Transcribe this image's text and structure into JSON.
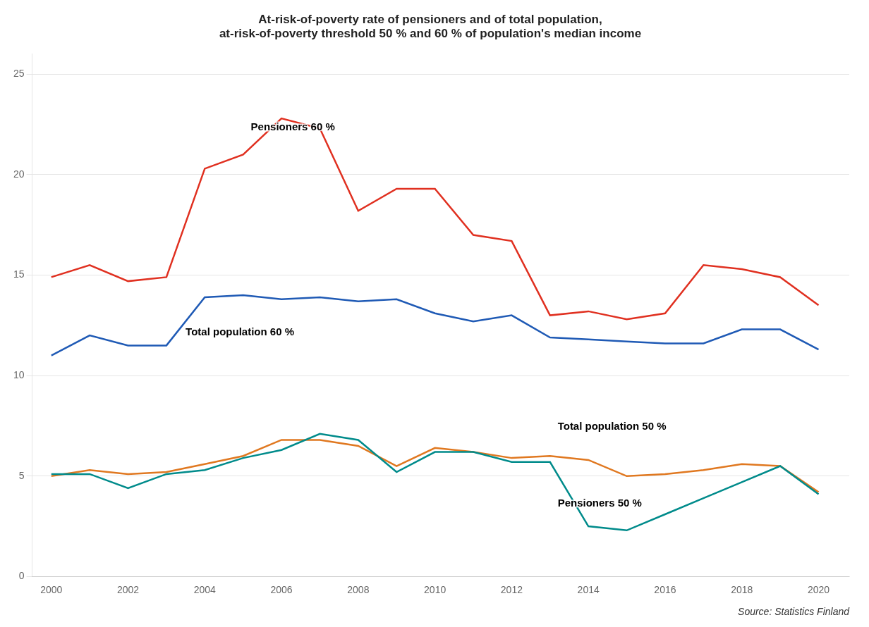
{
  "chart_data": {
    "type": "line",
    "title": "At-risk-of-poverty rate of pensioners and of total population,\nat-risk-of-poverty threshold 50 % and 60 % of population's median income",
    "source": "Source: Statistics Finland",
    "x": [
      2000,
      2001,
      2002,
      2003,
      2004,
      2005,
      2006,
      2007,
      2008,
      2009,
      2010,
      2011,
      2012,
      2013,
      2014,
      2015,
      2016,
      2017,
      2018,
      2019,
      2020
    ],
    "series": [
      {
        "name": "Pensioners 60 %",
        "color": "#e03020",
        "values": [
          14.9,
          15.5,
          14.7,
          14.9,
          20.3,
          21.0,
          22.8,
          22.3,
          18.2,
          19.3,
          19.3,
          17.0,
          16.7,
          13.0,
          13.2,
          12.8,
          13.1,
          15.5,
          15.3,
          14.9,
          13.5
        ]
      },
      {
        "name": "Total population 60 %",
        "color": "#1f5ab5",
        "values": [
          11.0,
          12.0,
          11.5,
          11.5,
          13.9,
          14.0,
          13.8,
          13.9,
          13.7,
          13.8,
          13.1,
          12.7,
          13.0,
          11.9,
          11.8,
          11.7,
          11.6,
          11.6,
          12.3,
          12.3,
          11.3
        ]
      },
      {
        "name": "Pensioners 50 %",
        "color": "#008b8b",
        "values": [
          5.1,
          5.1,
          4.4,
          5.1,
          5.3,
          5.9,
          6.3,
          7.1,
          6.8,
          5.2,
          6.2,
          6.2,
          5.7,
          5.7,
          2.5,
          2.3,
          3.1,
          3.9,
          4.7,
          5.5,
          4.1
        ]
      },
      {
        "name": "Total population 50 %",
        "color": "#e07820",
        "values": [
          5.0,
          5.3,
          5.1,
          5.2,
          5.6,
          6.0,
          6.8,
          6.8,
          6.5,
          5.5,
          6.4,
          6.2,
          5.9,
          6.0,
          5.8,
          5.0,
          5.1,
          5.3,
          5.6,
          5.5,
          4.2
        ]
      }
    ],
    "xlim": [
      1999.5,
      2020.8
    ],
    "xticks": [
      2000,
      2002,
      2004,
      2006,
      2008,
      2010,
      2012,
      2014,
      2016,
      2018,
      2020
    ],
    "ylim": [
      0,
      26
    ],
    "yticks": [
      0,
      5,
      10,
      15,
      20,
      25
    ],
    "grid": "y",
    "annotations": [
      {
        "text": "Pensioners 60 %",
        "x": 2005.2,
        "y": 22.2
      },
      {
        "text": "Total population 60 %",
        "x": 2003.5,
        "y": 12.0
      },
      {
        "text": "Total population 50 %",
        "x": 2013.2,
        "y": 7.3
      },
      {
        "text": "Pensioners 50 %",
        "x": 2013.2,
        "y": 3.5
      }
    ]
  }
}
